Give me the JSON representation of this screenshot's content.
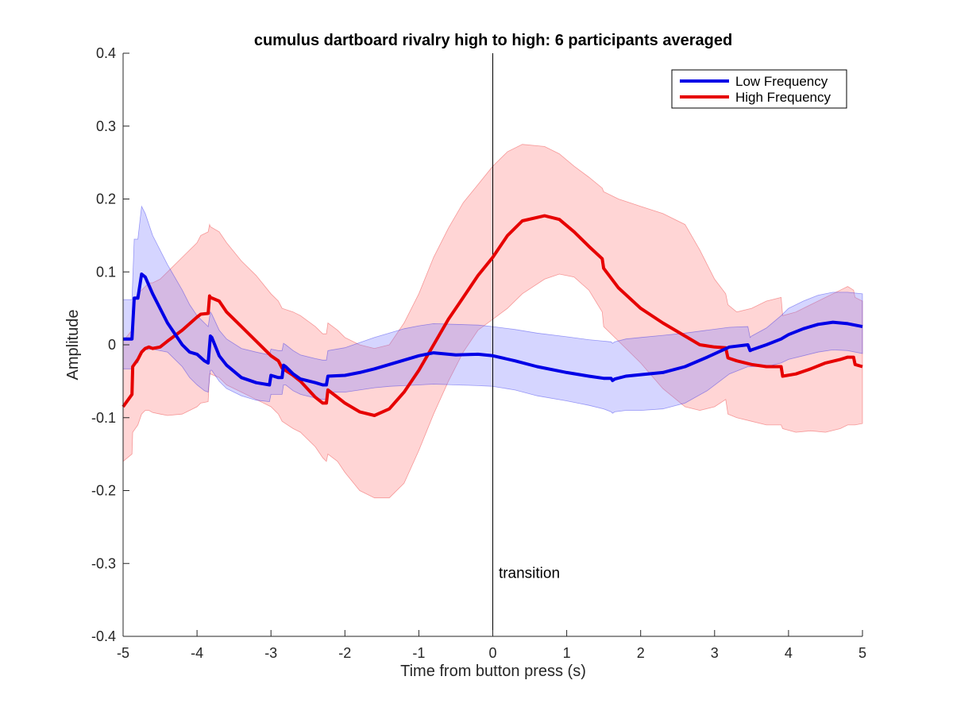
{
  "chart_data": {
    "type": "line",
    "title": "cumulus dartboard rivalry high to high: 6 participants averaged",
    "xlabel": "Time from button press (s)",
    "ylabel": "Amplitude",
    "xlim": [
      -5,
      5
    ],
    "ylim": [
      -0.4,
      0.4
    ],
    "xticks": [
      -5,
      -4,
      -3,
      -2,
      -1,
      0,
      1,
      2,
      3,
      4,
      5
    ],
    "yticks": [
      -0.4,
      -0.3,
      -0.2,
      -0.1,
      0,
      0.1,
      0.2,
      0.3,
      0.4
    ],
    "xtick_labels": [
      "-5",
      "-4",
      "-3",
      "-2",
      "-1",
      "0",
      "1",
      "2",
      "3",
      "4",
      "5"
    ],
    "ytick_labels": [
      "-0.4",
      "-0.3",
      "-0.2",
      "-0.1",
      "0",
      "0.1",
      "0.2",
      "0.3",
      "0.4"
    ],
    "grid": false,
    "legend_position": "top-right",
    "annotations": [
      {
        "text": "transition",
        "x": 0.08,
        "y": -0.32
      },
      {
        "type": "vertical-line",
        "x": 0
      }
    ],
    "series": [
      {
        "name": "Low Frequency",
        "color": "#0000e6",
        "band_color": "#8080ff",
        "x": [
          -5.0,
          -4.88,
          -4.85,
          -4.8,
          -4.75,
          -4.7,
          -4.6,
          -4.4,
          -4.2,
          -4.1,
          -4.0,
          -3.9,
          -3.85,
          -3.82,
          -3.8,
          -3.7,
          -3.6,
          -3.4,
          -3.2,
          -3.02,
          -3.0,
          -2.9,
          -2.85,
          -2.83,
          -2.8,
          -2.7,
          -2.6,
          -2.4,
          -2.3,
          -2.25,
          -2.23,
          -2.0,
          -1.8,
          -1.6,
          -1.4,
          -1.2,
          -1.0,
          -0.8,
          -0.5,
          -0.2,
          0.0,
          0.3,
          0.6,
          1.0,
          1.3,
          1.5,
          1.6,
          1.62,
          1.65,
          1.8,
          2.0,
          2.3,
          2.6,
          2.9,
          3.2,
          3.45,
          3.48,
          3.5,
          3.7,
          3.9,
          4.0,
          4.2,
          4.4,
          4.6,
          4.8,
          5.0
        ],
        "y": [
          0.008,
          0.008,
          0.064,
          0.064,
          0.097,
          0.093,
          0.07,
          0.03,
          0.0,
          -0.01,
          -0.013,
          -0.022,
          -0.025,
          0.012,
          0.01,
          -0.015,
          -0.028,
          -0.045,
          -0.052,
          -0.055,
          -0.042,
          -0.045,
          -0.045,
          -0.028,
          -0.03,
          -0.04,
          -0.047,
          -0.052,
          -0.055,
          -0.055,
          -0.043,
          -0.042,
          -0.038,
          -0.033,
          -0.027,
          -0.021,
          -0.015,
          -0.011,
          -0.014,
          -0.013,
          -0.015,
          -0.022,
          -0.03,
          -0.038,
          -0.043,
          -0.046,
          -0.046,
          -0.049,
          -0.047,
          -0.043,
          -0.041,
          -0.038,
          -0.03,
          -0.017,
          -0.003,
          0.0,
          -0.008,
          -0.007,
          0.0,
          0.008,
          0.014,
          0.022,
          0.028,
          0.031,
          0.029,
          0.025
        ],
        "upper": [
          0.062,
          0.062,
          0.145,
          0.145,
          0.19,
          0.18,
          0.15,
          0.11,
          0.075,
          0.055,
          0.04,
          0.03,
          0.025,
          0.045,
          0.042,
          0.02,
          0.008,
          -0.005,
          -0.01,
          -0.014,
          -0.006,
          -0.008,
          -0.008,
          0.002,
          0.0,
          -0.008,
          -0.014,
          -0.019,
          -0.021,
          -0.021,
          -0.008,
          -0.004,
          0.003,
          0.01,
          0.016,
          0.022,
          0.026,
          0.029,
          0.028,
          0.027,
          0.025,
          0.021,
          0.016,
          0.011,
          0.007,
          0.005,
          0.004,
          0.002,
          0.004,
          0.008,
          0.01,
          0.013,
          0.016,
          0.02,
          0.024,
          0.025,
          0.01,
          0.012,
          0.023,
          0.04,
          0.05,
          0.06,
          0.068,
          0.072,
          0.072,
          0.07
        ],
        "lower": [
          -0.033,
          -0.033,
          -0.025,
          -0.025,
          -0.008,
          -0.007,
          -0.006,
          -0.01,
          -0.03,
          -0.045,
          -0.055,
          -0.063,
          -0.065,
          -0.035,
          -0.035,
          -0.05,
          -0.06,
          -0.07,
          -0.076,
          -0.078,
          -0.068,
          -0.068,
          -0.068,
          -0.055,
          -0.055,
          -0.063,
          -0.068,
          -0.073,
          -0.075,
          -0.075,
          -0.065,
          -0.065,
          -0.062,
          -0.059,
          -0.057,
          -0.056,
          -0.055,
          -0.054,
          -0.055,
          -0.056,
          -0.057,
          -0.062,
          -0.07,
          -0.077,
          -0.083,
          -0.088,
          -0.092,
          -0.094,
          -0.092,
          -0.09,
          -0.09,
          -0.088,
          -0.08,
          -0.063,
          -0.04,
          -0.03,
          -0.03,
          -0.03,
          -0.03,
          -0.025,
          -0.02,
          -0.015,
          -0.01,
          -0.007,
          -0.008,
          -0.012
        ]
      },
      {
        "name": "High Frequency",
        "color": "#e60000",
        "band_color": "#ff9a9a",
        "x": [
          -5.0,
          -4.88,
          -4.87,
          -4.8,
          -4.75,
          -4.7,
          -4.65,
          -4.6,
          -4.5,
          -4.4,
          -4.2,
          -4.0,
          -3.95,
          -3.85,
          -3.83,
          -3.82,
          -3.7,
          -3.6,
          -3.4,
          -3.2,
          -3.0,
          -2.9,
          -2.85,
          -2.7,
          -2.6,
          -2.4,
          -2.3,
          -2.25,
          -2.23,
          -2.1,
          -2.0,
          -1.8,
          -1.6,
          -1.4,
          -1.2,
          -1.0,
          -0.8,
          -0.6,
          -0.4,
          -0.2,
          0.0,
          0.2,
          0.4,
          0.7,
          0.9,
          1.1,
          1.3,
          1.48,
          1.5,
          1.7,
          2.0,
          2.3,
          2.6,
          2.8,
          3.0,
          3.15,
          3.18,
          3.3,
          3.5,
          3.7,
          3.9,
          3.92,
          4.1,
          4.3,
          4.5,
          4.7,
          4.8,
          4.88,
          4.9,
          5.0
        ],
        "y": [
          -0.085,
          -0.068,
          -0.03,
          -0.02,
          -0.01,
          -0.005,
          -0.003,
          -0.005,
          -0.003,
          0.005,
          0.02,
          0.038,
          0.042,
          0.043,
          0.067,
          0.065,
          0.06,
          0.045,
          0.025,
          0.005,
          -0.015,
          -0.022,
          -0.032,
          -0.042,
          -0.05,
          -0.072,
          -0.08,
          -0.08,
          -0.062,
          -0.072,
          -0.08,
          -0.092,
          -0.097,
          -0.088,
          -0.065,
          -0.035,
          0.0,
          0.035,
          0.065,
          0.095,
          0.12,
          0.15,
          0.17,
          0.177,
          0.172,
          0.155,
          0.135,
          0.118,
          0.105,
          0.078,
          0.05,
          0.03,
          0.012,
          0.0,
          -0.003,
          -0.004,
          -0.018,
          -0.022,
          -0.027,
          -0.03,
          -0.03,
          -0.043,
          -0.04,
          -0.033,
          -0.025,
          -0.02,
          -0.017,
          -0.017,
          -0.027,
          -0.03
        ],
        "upper": [
          0.005,
          0.02,
          0.06,
          0.07,
          0.075,
          0.08,
          0.085,
          0.085,
          0.09,
          0.1,
          0.12,
          0.14,
          0.15,
          0.155,
          0.165,
          0.162,
          0.155,
          0.14,
          0.115,
          0.095,
          0.07,
          0.06,
          0.05,
          0.045,
          0.04,
          0.025,
          0.015,
          0.015,
          0.03,
          0.02,
          0.01,
          0.0,
          -0.005,
          0.0,
          0.03,
          0.07,
          0.12,
          0.16,
          0.195,
          0.22,
          0.245,
          0.265,
          0.275,
          0.272,
          0.262,
          0.245,
          0.23,
          0.215,
          0.21,
          0.2,
          0.19,
          0.18,
          0.165,
          0.13,
          0.09,
          0.07,
          0.055,
          0.045,
          0.05,
          0.06,
          0.065,
          0.04,
          0.045,
          0.055,
          0.065,
          0.075,
          0.08,
          0.075,
          0.065,
          0.06
        ],
        "lower": [
          -0.16,
          -0.15,
          -0.12,
          -0.11,
          -0.095,
          -0.09,
          -0.09,
          -0.093,
          -0.095,
          -0.097,
          -0.095,
          -0.085,
          -0.08,
          -0.078,
          -0.04,
          -0.04,
          -0.045,
          -0.055,
          -0.065,
          -0.075,
          -0.085,
          -0.095,
          -0.105,
          -0.115,
          -0.12,
          -0.14,
          -0.155,
          -0.16,
          -0.15,
          -0.16,
          -0.175,
          -0.2,
          -0.21,
          -0.21,
          -0.19,
          -0.145,
          -0.095,
          -0.05,
          -0.01,
          0.02,
          0.035,
          0.05,
          0.07,
          0.09,
          0.097,
          0.093,
          0.075,
          0.045,
          0.025,
          0.005,
          -0.025,
          -0.06,
          -0.085,
          -0.09,
          -0.085,
          -0.075,
          -0.095,
          -0.1,
          -0.105,
          -0.11,
          -0.11,
          -0.115,
          -0.12,
          -0.118,
          -0.12,
          -0.115,
          -0.11,
          -0.11,
          -0.11,
          -0.108
        ]
      }
    ]
  }
}
